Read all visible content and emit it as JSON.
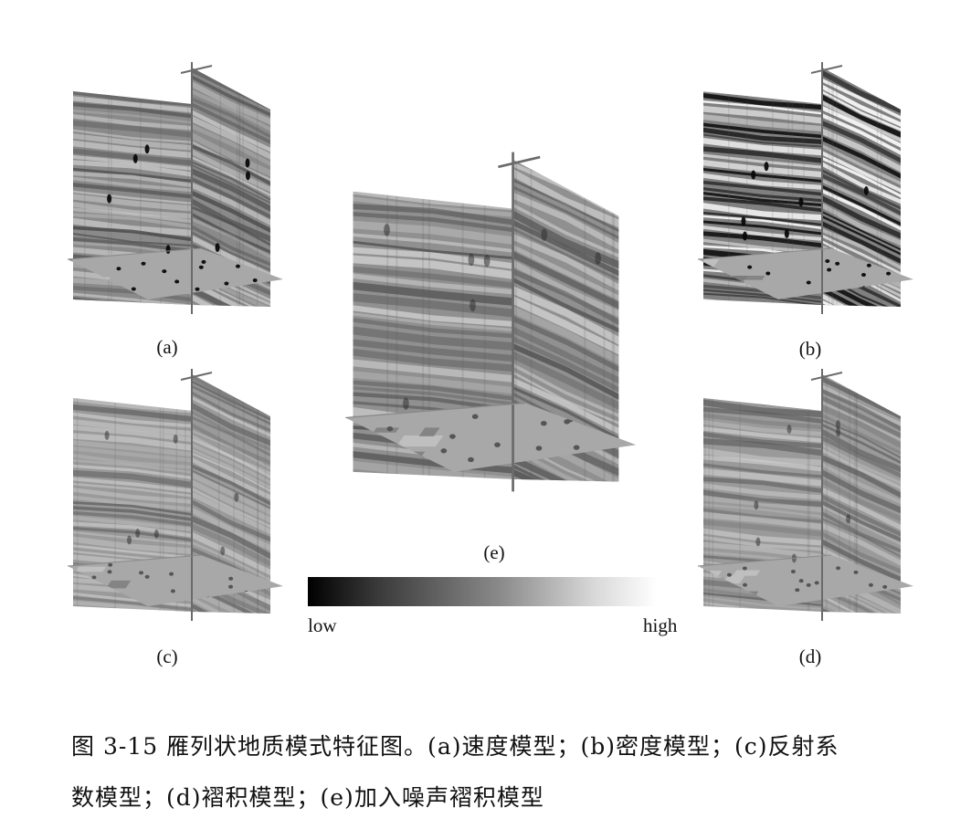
{
  "figure": {
    "panels": [
      {
        "id": "a",
        "label": "(a)",
        "tone": "mid"
      },
      {
        "id": "b",
        "label": "(b)",
        "tone": "contrast"
      },
      {
        "id": "c",
        "label": "(c)",
        "tone": "light"
      },
      {
        "id": "d",
        "label": "(d)",
        "tone": "light"
      },
      {
        "id": "e",
        "label": "(e)",
        "tone": "noisy"
      }
    ],
    "colorbar": {
      "low": "low",
      "high": "high",
      "from_color": "#000000",
      "to_color": "#ffffff"
    }
  },
  "caption": {
    "line1": "图 3-15 雁列状地质模式特征图。(a)速度模型；(b)密度模型；(c)反射系",
    "line2": "数模型；(d)褶积模型；(e)加入噪声褶积模型"
  }
}
